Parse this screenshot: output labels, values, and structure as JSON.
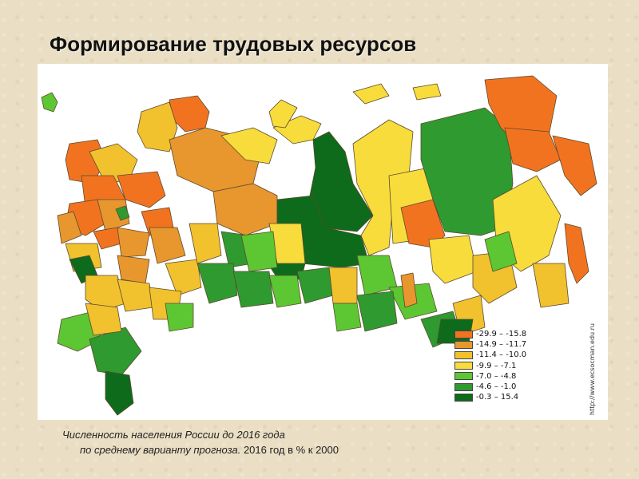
{
  "title": "Формирование трудовых ресурсов",
  "legend": {
    "items": [
      {
        "range": "-29.9 – -15.8",
        "color": "#f2731f"
      },
      {
        "range": "-14.9 – -11.7",
        "color": "#e8962e"
      },
      {
        "range": "-11.4 – -10.0",
        "color": "#f1c12e"
      },
      {
        "range": "-9.9 – -7.1",
        "color": "#f7dc3c"
      },
      {
        "range": "-7.0 – -4.8",
        "color": "#5cc732"
      },
      {
        "range": "-4.6 – -1.0",
        "color": "#2f9a2f"
      },
      {
        "range": "-0.3 – 15.4",
        "color": "#0e6b1c"
      }
    ]
  },
  "source_site": "http://www.ecsocman.edu.ru",
  "caption": {
    "line1": "Численность населения России до 2016 года",
    "line2_italic": "по среднему варианту прогноза.",
    "line2_rest": " 2016 год в % к 2000"
  }
}
